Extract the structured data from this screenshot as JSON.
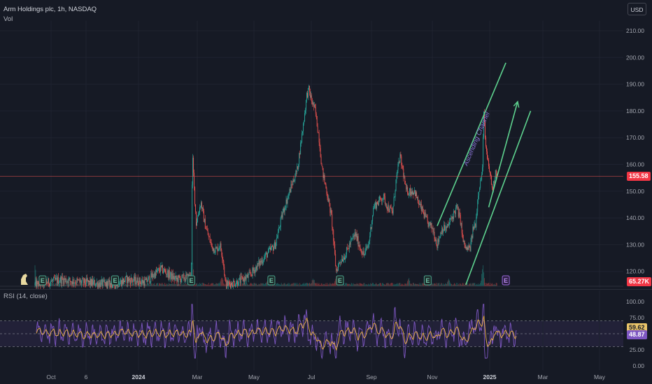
{
  "header": {
    "title": "Arm Holdings plc, 1h, NASDAQ",
    "vol_label": "Vol",
    "currency": "USD",
    "rsi_label": "RSI (14, close)"
  },
  "price_badges": {
    "last_price": "155.58",
    "volume": "65.27K",
    "rsi": "59.62",
    "rsi_ma": "48.87"
  },
  "annotation": "Ascending Channel",
  "earnings_marker": "E",
  "colors": {
    "background": "#161a25",
    "up": "#26a69a",
    "down": "#ef5350",
    "channel": "#5ed38f",
    "rsi_line": "#7e57c2",
    "rsi_ma": "#f0b44a",
    "price_line": "#ef5350"
  },
  "chart_data": {
    "type": "candlestick",
    "symbol": "Arm Holdings plc",
    "interval": "1h",
    "exchange": "NASDAQ",
    "y_ticks": [
      "210.00",
      "200.00",
      "190.00",
      "180.00",
      "170.00",
      "160.00",
      "150.00",
      "140.00",
      "130.00",
      "120.00"
    ],
    "ylim": [
      115,
      213
    ],
    "x_ticks": [
      {
        "label": "Oct",
        "bold": false
      },
      {
        "label": "6",
        "bold": false
      },
      {
        "label": "2024",
        "bold": true
      },
      {
        "label": "Mar",
        "bold": false
      },
      {
        "label": "May",
        "bold": false
      },
      {
        "label": "Jul",
        "bold": false
      },
      {
        "label": "Sep",
        "bold": false
      },
      {
        "label": "Nov",
        "bold": false
      },
      {
        "label": "2025",
        "bold": true
      },
      {
        "label": "Mar",
        "bold": false
      },
      {
        "label": "May",
        "bold": false
      }
    ],
    "price_path": [
      [
        0,
        115
      ],
      [
        7,
        117
      ],
      [
        12,
        116
      ],
      [
        21,
        115
      ],
      [
        24,
        117
      ],
      [
        29,
        116
      ],
      [
        33,
        121
      ],
      [
        37,
        117
      ],
      [
        41,
        118
      ],
      [
        41.3,
        164
      ],
      [
        41.8,
        150
      ],
      [
        42.3,
        138
      ],
      [
        43.5,
        146
      ],
      [
        44.5,
        138
      ],
      [
        45.5,
        133
      ],
      [
        46.5,
        129
      ],
      [
        47.5,
        128
      ],
      [
        48.5,
        130
      ],
      [
        49.3,
        125
      ],
      [
        50,
        115
      ],
      [
        53,
        116
      ],
      [
        56,
        118
      ],
      [
        60,
        125
      ],
      [
        63,
        130
      ],
      [
        65,
        142
      ],
      [
        67.5,
        153
      ],
      [
        68.8,
        158
      ],
      [
        70.3,
        174
      ],
      [
        71.3,
        186
      ],
      [
        71.8,
        188
      ],
      [
        72.5,
        184
      ],
      [
        73.5,
        180
      ],
      [
        74.5,
        170
      ],
      [
        75.3,
        158
      ],
      [
        76.5,
        150
      ],
      [
        77.8,
        140
      ],
      [
        79,
        120
      ],
      [
        80,
        124
      ],
      [
        81.3,
        126
      ],
      [
        82.5,
        130
      ],
      [
        84,
        134
      ],
      [
        85,
        130
      ],
      [
        86.2,
        126
      ],
      [
        87.5,
        130
      ],
      [
        88.8,
        144
      ],
      [
        90,
        146
      ],
      [
        91.3,
        148
      ],
      [
        92.5,
        144
      ],
      [
        93.8,
        142
      ],
      [
        94.7,
        154
      ],
      [
        95.7,
        163
      ],
      [
        96.6,
        157
      ],
      [
        97.3,
        150
      ],
      [
        98.5,
        150
      ],
      [
        99.6,
        150
      ],
      [
        100.4,
        146
      ],
      [
        101.8,
        142
      ],
      [
        103,
        138
      ],
      [
        104.3,
        136
      ],
      [
        105.5,
        130
      ],
      [
        106.7,
        136
      ],
      [
        108,
        136
      ],
      [
        109.3,
        140
      ],
      [
        110.6,
        144
      ],
      [
        111.6,
        139
      ],
      [
        112.3,
        131
      ],
      [
        113.2,
        128
      ],
      [
        114.2,
        129
      ],
      [
        114.9,
        136
      ],
      [
        115.6,
        138
      ],
      [
        116.3,
        150
      ],
      [
        116.9,
        154
      ],
      [
        117.4,
        158
      ],
      [
        117.7,
        182
      ],
      [
        118.1,
        168
      ],
      [
        118.6,
        162
      ],
      [
        119.4,
        156
      ],
      [
        120,
        150
      ],
      [
        120.8,
        158
      ],
      [
        121.3,
        155.58
      ]
    ],
    "volume_spikes": [
      [
        0,
        30
      ],
      [
        41.3,
        40
      ],
      [
        49,
        12
      ],
      [
        61,
        8
      ],
      [
        73,
        10
      ],
      [
        79,
        14
      ],
      [
        98,
        10
      ],
      [
        108.5,
        10
      ],
      [
        117.5,
        30
      ]
    ],
    "channel": {
      "upper": [
        [
          105.5,
          137
        ],
        [
          123.5,
          198
        ]
      ],
      "lower": [
        [
          113,
          115
        ],
        [
          130,
          180
        ]
      ],
      "arrow": [
        [
          119,
          144
        ],
        [
          126.5,
          183
        ]
      ]
    },
    "earnings_markers_x": [
      2,
      21,
      41,
      62,
      80,
      103,
      123.5
    ],
    "rsi": {
      "ticks": [
        "100.00",
        "75.00",
        "50.00",
        "25.00",
        "0.00"
      ],
      "ylim": [
        0,
        100
      ],
      "bands": [
        70,
        50,
        30
      ],
      "last": 59.62,
      "ma_last": 48.87
    }
  }
}
